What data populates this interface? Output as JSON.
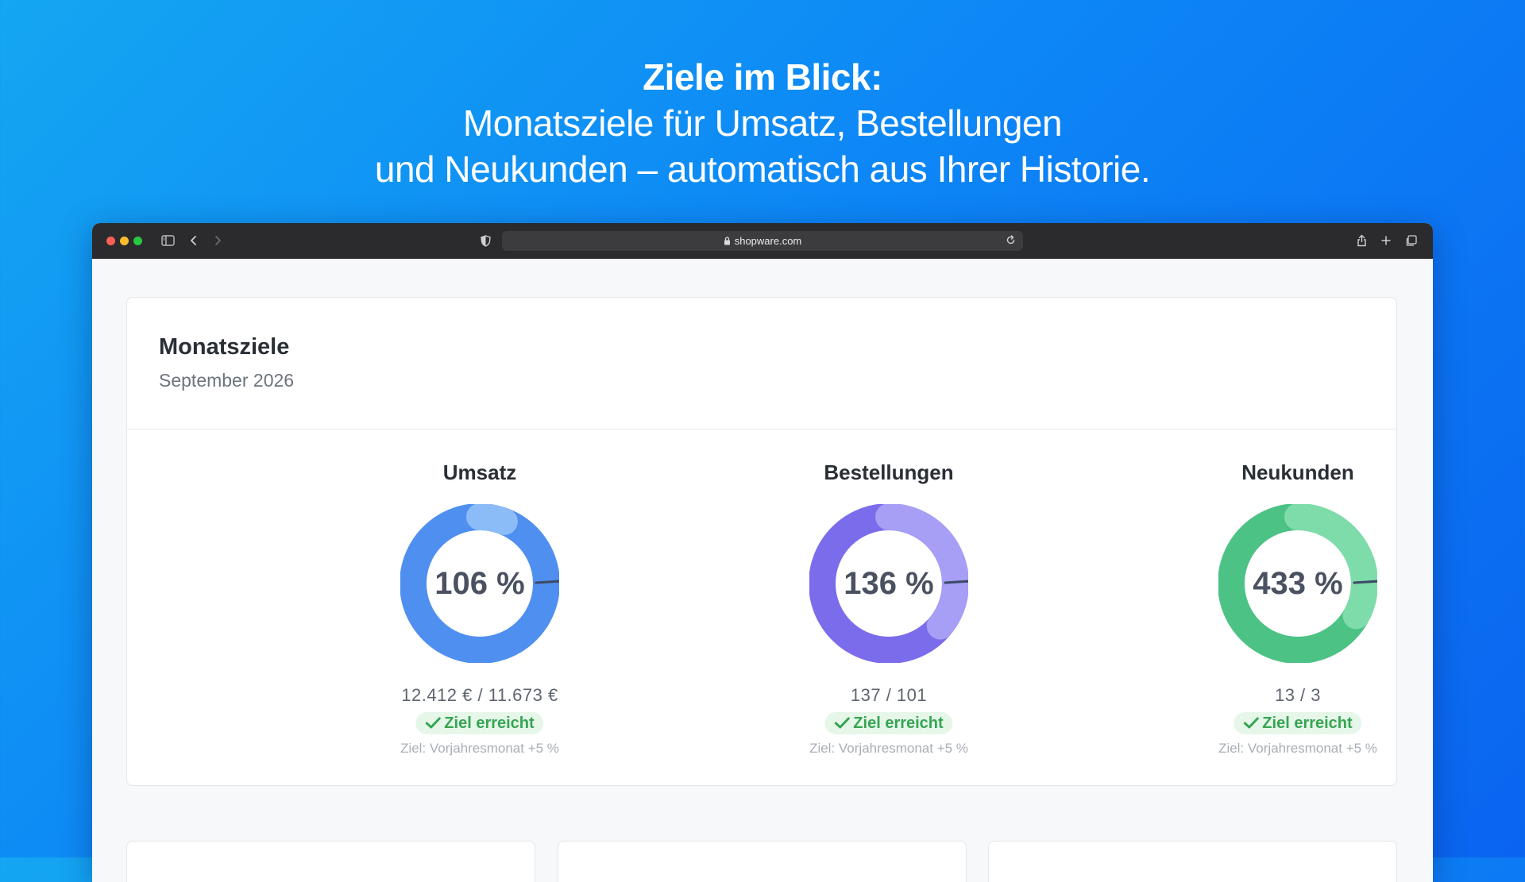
{
  "headline": {
    "line1": "Ziele im Blick:",
    "line2": "Monatsziele für Umsatz, Bestellungen",
    "line3": "und Neukunden – automatisch aus Ihrer Historie."
  },
  "browser": {
    "url": "shopware.com",
    "icons": [
      "sidebar-icon",
      "back-icon",
      "forward-icon",
      "shield-icon",
      "lock-icon",
      "reload-icon",
      "share-icon",
      "plus-icon",
      "tabs-icon"
    ]
  },
  "card": {
    "title": "Monatsziele",
    "subtitle": "September 2026"
  },
  "goals": [
    {
      "title": "Umsatz",
      "percent_label": "106 %",
      "percent": 106,
      "amount": "12.412 € / 11.673 €",
      "status": "Ziel erreicht",
      "note": "Ziel: Vorjahresmonat +5 %",
      "color_main": "#4f8ff0",
      "color_light": "#8cbcf7",
      "color_dark": "#2f6fdc"
    },
    {
      "title": "Bestellungen",
      "percent_label": "136 %",
      "percent": 136,
      "amount": "137 / 101",
      "status": "Ziel erreicht",
      "note": "Ziel: Vorjahresmonat +5 %",
      "color_main": "#7b6cec",
      "color_light": "#a79ef6",
      "color_dark": "#5b4fd6"
    },
    {
      "title": "Neukunden",
      "percent_label": "433 %",
      "percent": 433,
      "amount": "13 / 3",
      "status": "Ziel erreicht",
      "note": "Ziel: Vorjahresmonat +5 %",
      "color_main": "#4cc285",
      "color_light": "#7edcaa",
      "color_dark": "#34a96c"
    }
  ]
}
